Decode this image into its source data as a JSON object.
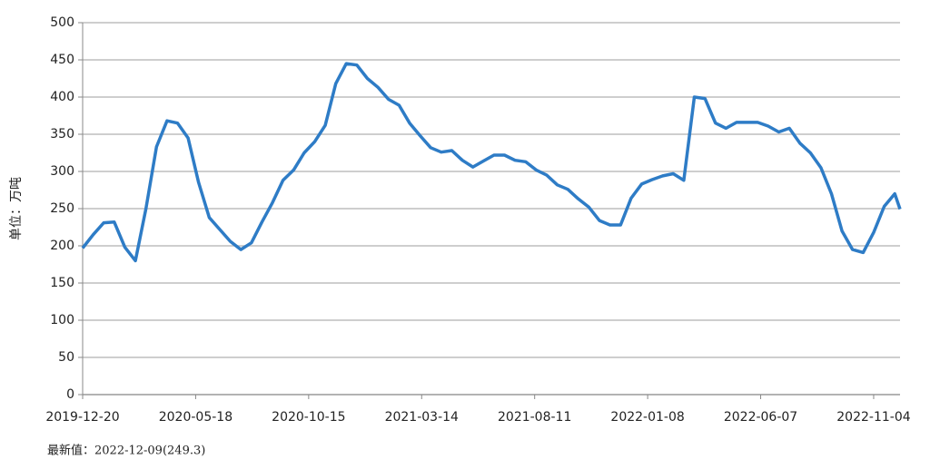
{
  "chart_data": {
    "type": "line",
    "y_label": "单位：万吨",
    "note": "最新值：2022-12-09(249.3)",
    "xlim": [
      "2019-12-20",
      "2022-12-09"
    ],
    "xticks": [
      "2019-12-20",
      "2020-05-18",
      "2020-10-15",
      "2021-03-14",
      "2021-08-11",
      "2022-01-08",
      "2022-06-07",
      "2022-11-04"
    ],
    "ylim": [
      0,
      500
    ],
    "yticks": [
      0,
      50,
      100,
      150,
      200,
      250,
      300,
      350,
      400,
      450,
      500
    ],
    "grid": true,
    "x": [
      "2019-12-20",
      "2020-01-03",
      "2020-01-17",
      "2020-01-31",
      "2020-02-14",
      "2020-02-28",
      "2020-03-13",
      "2020-03-27",
      "2020-04-10",
      "2020-04-24",
      "2020-05-08",
      "2020-05-22",
      "2020-06-05",
      "2020-06-19",
      "2020-07-03",
      "2020-07-17",
      "2020-07-31",
      "2020-08-14",
      "2020-08-28",
      "2020-09-11",
      "2020-09-25",
      "2020-10-09",
      "2020-10-23",
      "2020-11-06",
      "2020-11-20",
      "2020-12-04",
      "2020-12-18",
      "2021-01-01",
      "2021-01-15",
      "2021-01-29",
      "2021-02-12",
      "2021-02-26",
      "2021-03-12",
      "2021-03-26",
      "2021-04-09",
      "2021-04-23",
      "2021-05-07",
      "2021-05-21",
      "2021-06-04",
      "2021-06-18",
      "2021-07-02",
      "2021-07-16",
      "2021-07-30",
      "2021-08-13",
      "2021-08-27",
      "2021-09-10",
      "2021-09-24",
      "2021-10-08",
      "2021-10-22",
      "2021-11-05",
      "2021-11-19",
      "2021-12-03",
      "2021-12-17",
      "2021-12-31",
      "2022-01-14",
      "2022-01-28",
      "2022-02-11",
      "2022-02-25",
      "2022-03-11",
      "2022-03-25",
      "2022-04-08",
      "2022-04-22",
      "2022-05-06",
      "2022-05-20",
      "2022-06-03",
      "2022-06-17",
      "2022-07-01",
      "2022-07-15",
      "2022-07-29",
      "2022-08-12",
      "2022-08-26",
      "2022-09-09",
      "2022-09-23",
      "2022-10-07",
      "2022-10-21",
      "2022-11-04",
      "2022-11-18",
      "2022-12-02",
      "2022-12-09"
    ],
    "series": [
      {
        "color": "#2e7cc6",
        "values": [
          197,
          215,
          231,
          232,
          198,
          180,
          250,
          333,
          368,
          365,
          345,
          285,
          238,
          222,
          206,
          195,
          204,
          232,
          258,
          288,
          302,
          325,
          340,
          362,
          418,
          445,
          443,
          425,
          413,
          397,
          389,
          365,
          348,
          332,
          326,
          328,
          315,
          306,
          314,
          322,
          322,
          315,
          313,
          302,
          295,
          282,
          276,
          263,
          252,
          234,
          228,
          228,
          264,
          283,
          289,
          294,
          297,
          288,
          400,
          398,
          365,
          358,
          366,
          366,
          366,
          361,
          353,
          358,
          338,
          325,
          305,
          270,
          220,
          195,
          191,
          218,
          253,
          270,
          249.3
        ]
      }
    ]
  }
}
